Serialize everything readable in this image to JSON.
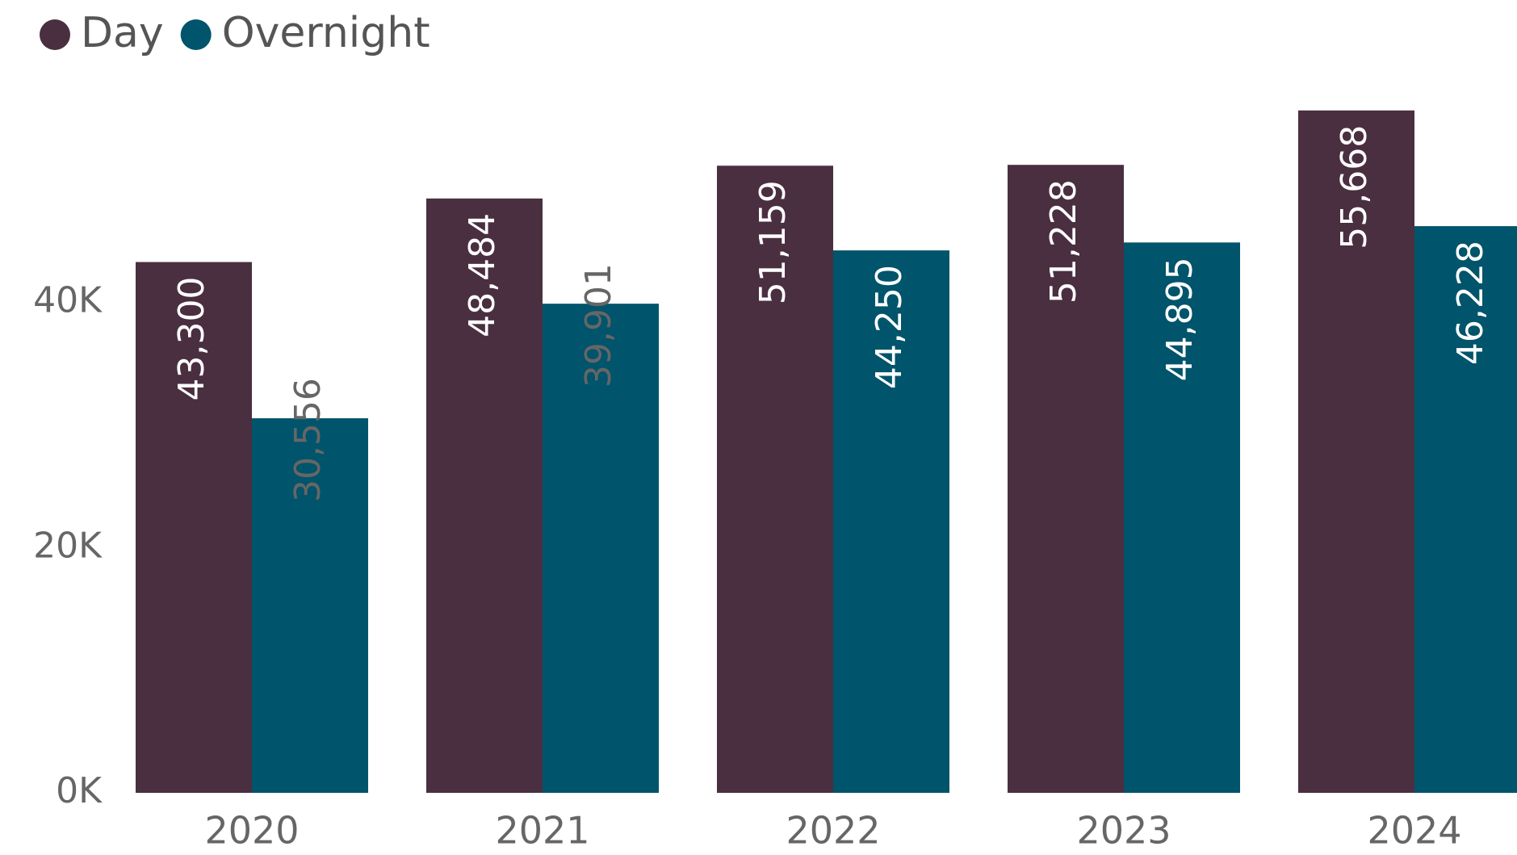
{
  "chart_data": {
    "type": "bar",
    "categories": [
      "2020",
      "2021",
      "2022",
      "2023",
      "2024"
    ],
    "series": [
      {
        "name": "Day",
        "color": "#4a2f40",
        "values": [
          43300,
          48484,
          51159,
          51228,
          55668
        ],
        "value_labels": [
          "43,300",
          "48,484",
          "51,159",
          "51,228",
          "55,668"
        ]
      },
      {
        "name": "Overnight",
        "color": "#00546b",
        "values": [
          30556,
          39901,
          44250,
          44895,
          46228
        ],
        "value_labels": [
          "30,556",
          "39,901",
          "44,250",
          "44,895",
          "46,228"
        ]
      }
    ],
    "ylim": [
      0,
      60000
    ],
    "yticks": [
      {
        "value": 0,
        "label": "0K"
      },
      {
        "value": 20000,
        "label": "20K"
      },
      {
        "value": 40000,
        "label": "40K"
      }
    ],
    "legend": "top-left"
  }
}
